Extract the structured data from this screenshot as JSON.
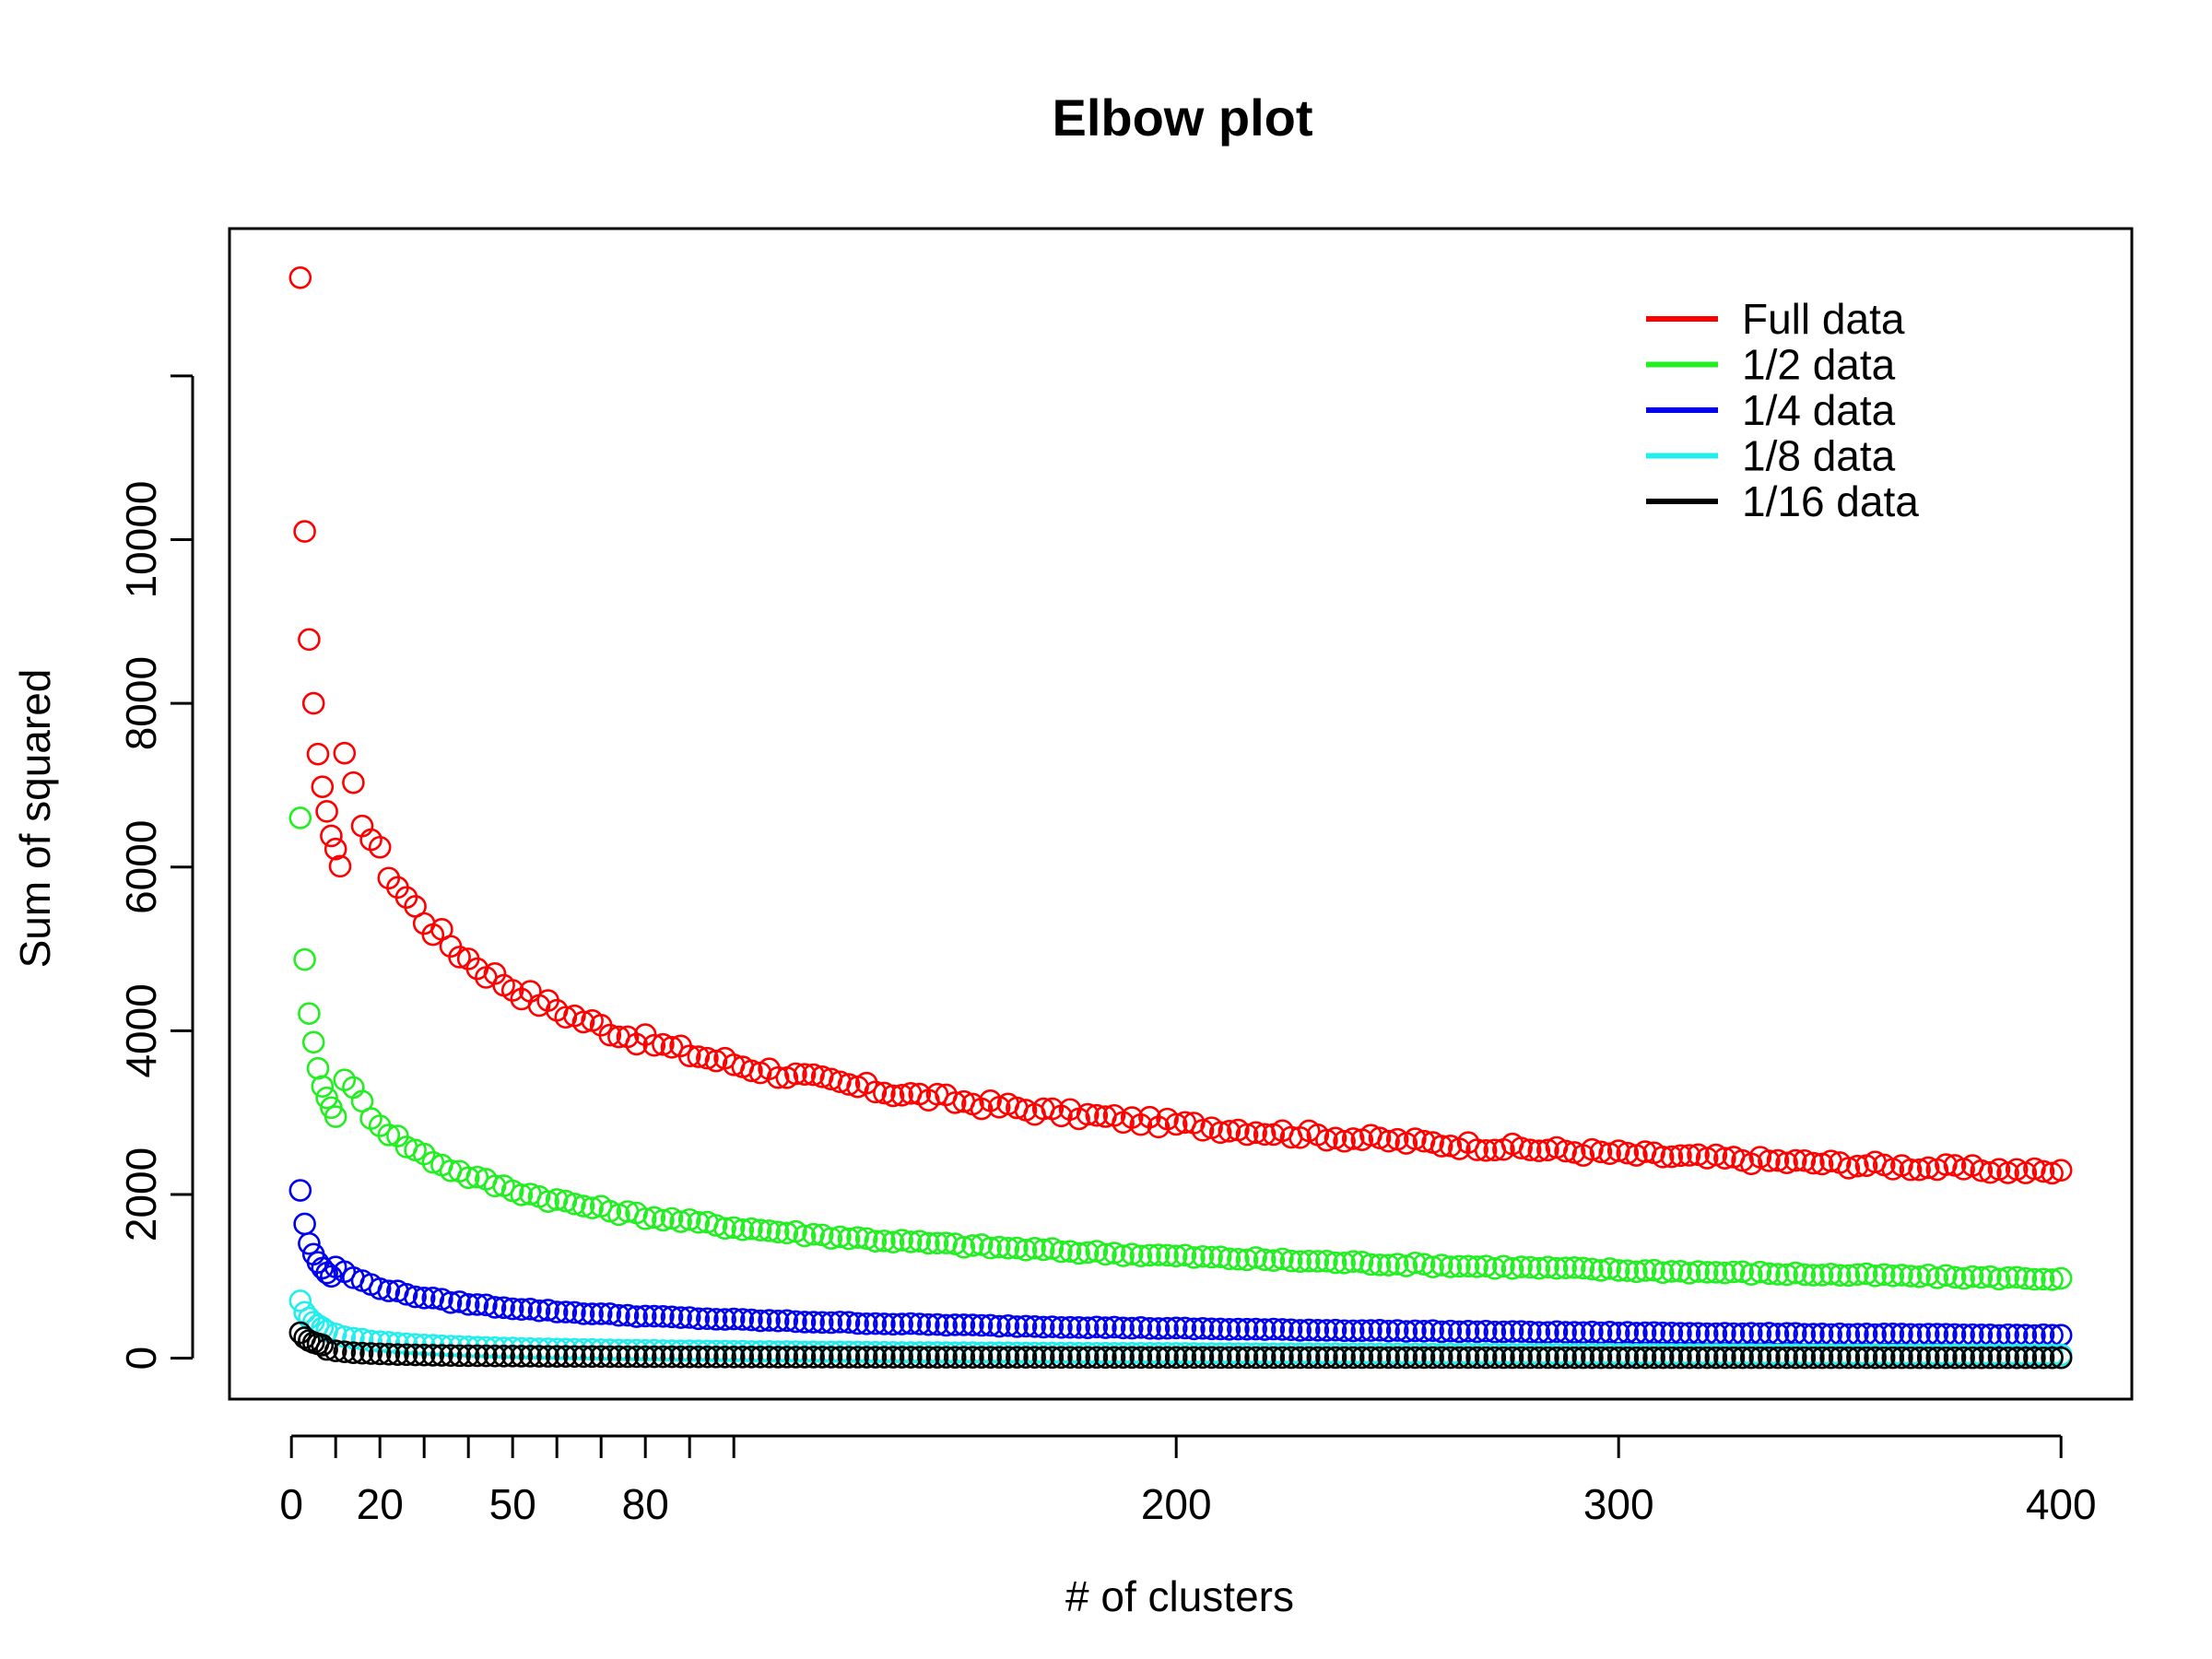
{
  "chart_data": {
    "type": "scatter",
    "title": "Elbow plot",
    "xlabel": "# of clusters",
    "ylabel": "Sum of squared",
    "xlim": [
      -14,
      416
    ],
    "ylim": [
      -500,
      13800
    ],
    "x_ticks": [
      0,
      10,
      20,
      30,
      40,
      50,
      60,
      70,
      80,
      90,
      100,
      200,
      300,
      400
    ],
    "x_tick_labels": [
      "0",
      "",
      "20",
      "",
      "",
      "50",
      "",
      "",
      "80",
      "",
      "",
      "200",
      "300",
      "400"
    ],
    "y_ticks": [
      0,
      2000,
      4000,
      6000,
      8000,
      10000,
      12000
    ],
    "y_tick_labels": [
      "0",
      "2000",
      "4000",
      "6000",
      "8000",
      "10000",
      ""
    ],
    "legend": {
      "position": "top-right",
      "entries": [
        "Full data",
        "1/2 data",
        "1/4 data",
        "1/8 data",
        "1/16 data"
      ]
    },
    "x": {
      "start": 2,
      "end": 400,
      "step": 2
    },
    "series": [
      {
        "name": "Full data",
        "color": "#ff0000",
        "model": "power",
        "anchor_x": [
          2,
          400
        ],
        "anchor_y": [
          13200,
          2270
        ],
        "early_points": [
          [
            2,
            13200
          ],
          [
            3,
            10100
          ],
          [
            4,
            8780
          ],
          [
            5,
            8000
          ],
          [
            6,
            7380
          ],
          [
            7,
            6980
          ],
          [
            8,
            6680
          ],
          [
            9,
            6380
          ],
          [
            10,
            6220
          ],
          [
            11,
            6010
          ]
        ]
      },
      {
        "name": "1/2 data",
        "color": "#22ee22",
        "model": "power",
        "anchor_x": [
          2,
          400
        ],
        "anchor_y": [
          6600,
          970
        ],
        "early_points": [
          [
            2,
            6600
          ],
          [
            3,
            4870
          ],
          [
            4,
            4210
          ],
          [
            5,
            3860
          ],
          [
            6,
            3540
          ],
          [
            7,
            3320
          ],
          [
            8,
            3180
          ],
          [
            9,
            3060
          ],
          [
            10,
            2950
          ]
        ]
      },
      {
        "name": "1/4 data",
        "color": "#0000ee",
        "model": "power",
        "anchor_x": [
          2,
          400
        ],
        "anchor_y": [
          2050,
          280
        ],
        "early_points": [
          [
            2,
            2050
          ],
          [
            3,
            1640
          ],
          [
            4,
            1400
          ],
          [
            5,
            1270
          ],
          [
            6,
            1170
          ],
          [
            7,
            1100
          ],
          [
            8,
            1040
          ],
          [
            9,
            1000
          ]
        ]
      },
      {
        "name": "1/8 data",
        "color": "#22eeee",
        "model": "power",
        "anchor_x": [
          2,
          400
        ],
        "anchor_y": [
          700,
          40
        ],
        "early_points": [
          [
            2,
            700
          ],
          [
            3,
            560
          ],
          [
            4,
            490
          ],
          [
            5,
            440
          ],
          [
            6,
            400
          ],
          [
            7,
            370
          ]
        ]
      },
      {
        "name": "1/16 data",
        "color": "#000000",
        "model": "power",
        "anchor_x": [
          2,
          400
        ],
        "anchor_y": [
          310,
          5
        ],
        "early_points": [
          [
            2,
            310
          ],
          [
            3,
            250
          ],
          [
            4,
            215
          ],
          [
            5,
            190
          ],
          [
            6,
            175
          ],
          [
            7,
            160
          ]
        ]
      }
    ]
  }
}
